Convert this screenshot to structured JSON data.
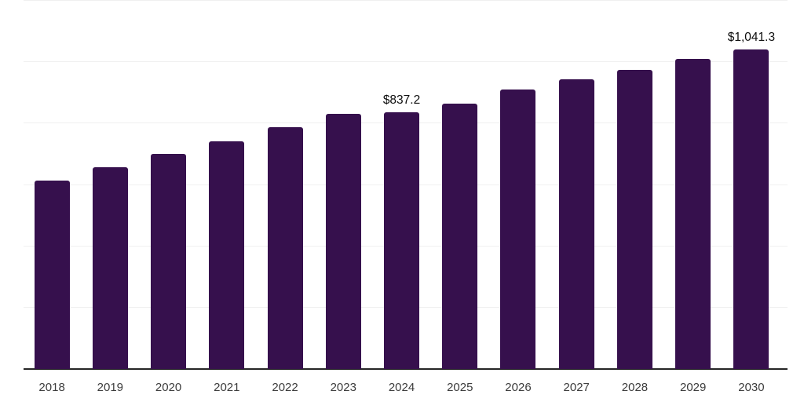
{
  "chart_data": {
    "type": "bar",
    "title": "",
    "xlabel": "",
    "ylabel": "",
    "categories": [
      "2018",
      "2019",
      "2020",
      "2021",
      "2022",
      "2023",
      "2024",
      "2025",
      "2026",
      "2027",
      "2028",
      "2029",
      "2030"
    ],
    "values": [
      615.0,
      657.0,
      701.5,
      742.5,
      787.5,
      832.0,
      837.2,
      866.0,
      911.0,
      945.0,
      975.0,
      1010.5,
      1041.3
    ],
    "data_labels": [
      null,
      null,
      null,
      null,
      null,
      null,
      "$837.2",
      null,
      null,
      null,
      null,
      null,
      "$1,041.3"
    ],
    "ylim": [
      0,
      1200
    ],
    "gridline_step": 200,
    "grid": "horizontal-only",
    "legend": "none",
    "colors": {
      "bar": "#36104d",
      "axis_line": "#262626",
      "gridline": "#f0f0f0",
      "tick_label": "#3c3c3c",
      "data_label": "#0d0d0d",
      "background": "#ffffff"
    }
  }
}
